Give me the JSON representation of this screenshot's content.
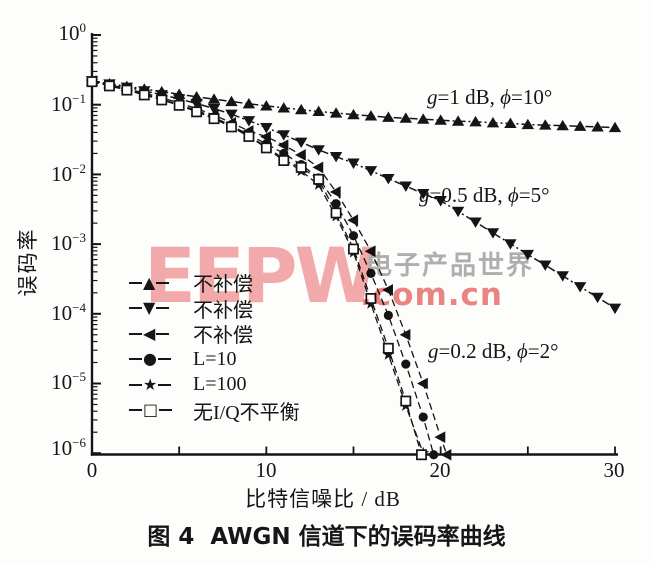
{
  "figure": {
    "caption_prefix": "图 4",
    "caption_text": "AWGN 信道下的误码率曲线"
  },
  "watermark": {
    "logo_text": "EEPW",
    "site_name": "电子产品世界",
    "domain": ".com.cn",
    "logo_color": "#f2a2a2",
    "site_name_color": "#a8a8a8",
    "domain_color": "#ea7878"
  },
  "legend": {
    "items": [
      {
        "marker_char": "▲",
        "marker": "triangle-up",
        "label": "不补偿"
      },
      {
        "marker_char": "▼",
        "marker": "triangle-down",
        "label": "不补偿"
      },
      {
        "marker_char": "◀",
        "marker": "triangle-left",
        "label": "不补偿"
      },
      {
        "marker_char": "●",
        "marker": "circle",
        "label": "L=10"
      },
      {
        "marker_char": "★",
        "marker": "star",
        "label": "L=100"
      },
      {
        "marker_char": "□",
        "marker": "square-open",
        "label": "无I/Q不平衡"
      }
    ]
  },
  "chart_data": {
    "type": "line",
    "title": "图 4 AWGN 信道下的误码率曲线",
    "xlabel": "比特信噪比 / dB",
    "ylabel": "误码率",
    "stroke_color": "#151515",
    "x_axis": {
      "label": "比特信噪比 / dB",
      "min": 0,
      "max": 30,
      "tick_labels": [
        "0",
        "10",
        "20",
        "30"
      ],
      "tick_values": [
        0,
        10,
        20,
        30
      ],
      "minor_tick_values": [
        5,
        15,
        25
      ]
    },
    "y_axis": {
      "label": "误码率",
      "scale": "log",
      "tick_base": "10",
      "tick_exponents": [
        "0",
        "−1",
        "−2",
        "−3",
        "−4",
        "−5",
        "−6"
      ],
      "min_exp": -6,
      "max_exp": 0
    },
    "annotations": [
      {
        "var1": "g",
        "text1": "=1 dB, ",
        "var2": "ϕ",
        "text2": "=10°"
      },
      {
        "var1": "g",
        "text1": "=0.5 dB, ",
        "var2": "ϕ",
        "text2": "=5°"
      },
      {
        "var1": "g",
        "text1": "=0.2 dB, ",
        "var2": "ϕ",
        "text2": "=2°"
      }
    ],
    "series": [
      {
        "name": "不补偿 g=1 dB ϕ=10°",
        "marker": "triangle-up",
        "line": "dashdot",
        "width": 1.5,
        "x": [
          0,
          1,
          2,
          3,
          4,
          5,
          6,
          7,
          8,
          9,
          10,
          11,
          12,
          13,
          14,
          15,
          16,
          17,
          18,
          19,
          20,
          21,
          22,
          23,
          24,
          25,
          26,
          27,
          28,
          29,
          30
        ],
        "ber": [
          0.22,
          0.2,
          0.183,
          0.168,
          0.154,
          0.141,
          0.13,
          0.12,
          0.111,
          0.103,
          0.096,
          0.09,
          0.085,
          0.08,
          0.076,
          0.072,
          0.069,
          0.066,
          0.064,
          0.062,
          0.06,
          0.058,
          0.057,
          0.055,
          0.054,
          0.052,
          0.051,
          0.05,
          0.049,
          0.048,
          0.047
        ]
      },
      {
        "name": "不补偿 g=0.5 dB ϕ=5°",
        "marker": "triangle-down",
        "line": "dashdot",
        "width": 1.5,
        "x": [
          0,
          1,
          2,
          3,
          4,
          5,
          6,
          7,
          8,
          9,
          10,
          11,
          12,
          13,
          14,
          15,
          16,
          17,
          18,
          19,
          20,
          21,
          22,
          23,
          24,
          25,
          26,
          27,
          28,
          29,
          30
        ],
        "ber": [
          0.22,
          0.198,
          0.178,
          0.158,
          0.139,
          0.121,
          0.104,
          0.088,
          0.073,
          0.059,
          0.047,
          0.037,
          0.029,
          0.0225,
          0.018,
          0.0145,
          0.0113,
          0.0087,
          0.0068,
          0.0053,
          0.0042,
          0.00295,
          0.00207,
          0.00145,
          0.00101,
          0.00071,
          0.0005,
          0.00035,
          0.000245,
          0.000172,
          0.00012
        ]
      },
      {
        "name": "不补偿 g=0.2 dB ϕ=2°",
        "marker": "triangle-left",
        "line": "dash",
        "width": 1.3,
        "x": [
          0,
          1,
          2,
          3,
          4,
          5,
          6,
          7,
          8,
          9,
          10,
          11,
          12,
          13,
          14,
          15,
          16,
          17,
          18,
          19,
          20,
          20.35
        ],
        "ber": [
          0.219,
          0.193,
          0.17,
          0.146,
          0.126,
          0.106,
          0.088,
          0.071,
          0.055,
          0.042,
          0.0347,
          0.0263,
          0.019,
          0.0126,
          0.0056,
          0.0022,
          0.00079,
          0.00022,
          5e-05,
          1e-05,
          1.7e-06,
          9.5e-07
        ]
      },
      {
        "name": "L=10",
        "marker": "circle",
        "line": "dash",
        "width": 1.3,
        "x": [
          0,
          1,
          2,
          3,
          4,
          5,
          6,
          7,
          8,
          9,
          10,
          11,
          12,
          13,
          14,
          15,
          16,
          17,
          18,
          19,
          19.6
        ],
        "ber": [
          0.219,
          0.191,
          0.166,
          0.141,
          0.12,
          0.1,
          0.083,
          0.066,
          0.05,
          0.037,
          0.0275,
          0.02,
          0.0138,
          0.0089,
          0.0038,
          0.00132,
          0.00038,
          9.5e-05,
          1.9e-05,
          3.3e-06,
          9.5e-07
        ]
      },
      {
        "name": "L=100",
        "marker": "star",
        "line": "dash",
        "width": 1.3,
        "x": [
          0,
          2,
          4,
          6,
          8,
          10,
          11,
          12,
          13,
          14,
          15,
          16,
          17,
          18,
          19
        ],
        "ber": [
          0.216,
          0.164,
          0.119,
          0.08,
          0.049,
          0.0251,
          0.0166,
          0.0112,
          0.0071,
          0.0025,
          0.00076,
          0.00014,
          2.6e-05,
          4.8e-06,
          1e-06
        ]
      },
      {
        "name": "无I/Q不平衡",
        "marker": "square-open",
        "line": "dash",
        "width": 1.3,
        "x": [
          0,
          1,
          2,
          3,
          4,
          5,
          6,
          7,
          8,
          9,
          10,
          11,
          12,
          13,
          14,
          15,
          16,
          17,
          18,
          18.9
        ],
        "ber": [
          0.214,
          0.186,
          0.162,
          0.138,
          0.117,
          0.098,
          0.079,
          0.063,
          0.048,
          0.035,
          0.024,
          0.0158,
          0.0126,
          0.0085,
          0.0028,
          0.00085,
          0.000166,
          3.2e-05,
          5.6e-06,
          9.5e-07
        ]
      }
    ]
  }
}
